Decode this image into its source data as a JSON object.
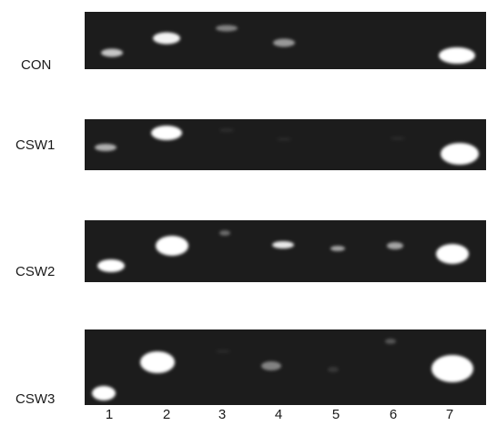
{
  "rows": [
    {
      "label": "CON"
    },
    {
      "label": "CSW1"
    },
    {
      "label": "CSW2"
    },
    {
      "label": "CSW3"
    }
  ],
  "lanes": [
    "1",
    "2",
    "3",
    "4",
    "5",
    "6",
    "7"
  ],
  "colors": {
    "gel_background": "#1c1c1c",
    "band": "#ffffff",
    "text": "#1a1a1a",
    "page": "#ffffff"
  }
}
